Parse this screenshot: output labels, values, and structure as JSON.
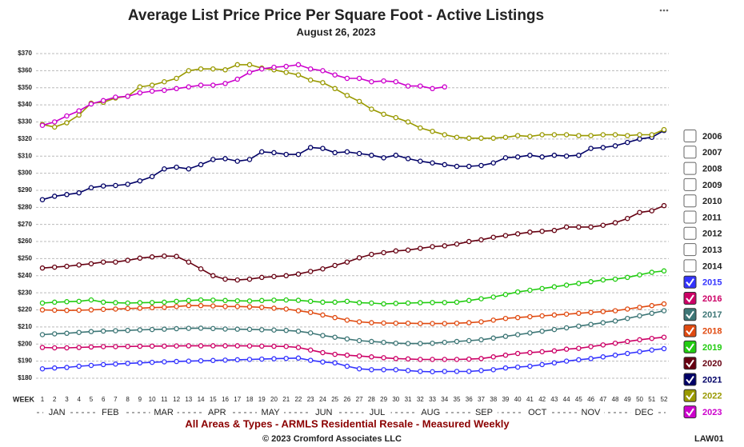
{
  "chart_data": {
    "type": "line",
    "title": "Average List Price Price Per Square Foot - Active Listings",
    "subtitle": "August 26, 2023",
    "x_label": "WEEK",
    "months": [
      "JAN",
      "FEB",
      "MAR",
      "APR",
      "MAY",
      "JUN",
      "JUL",
      "AUG",
      "SEP",
      "OCT",
      "NOV",
      "DEC"
    ],
    "footer": "All Areas & Types - ARMLS Residential Resale - Measured Weekly",
    "copyright": "© 2023 Cromford Associates LLC",
    "code": "LAW01",
    "categories": [
      1,
      2,
      3,
      4,
      5,
      6,
      7,
      8,
      9,
      10,
      11,
      12,
      13,
      14,
      15,
      16,
      17,
      18,
      19,
      20,
      21,
      22,
      23,
      24,
      25,
      26,
      27,
      28,
      29,
      30,
      31,
      32,
      33,
      34,
      35,
      36,
      37,
      38,
      39,
      40,
      41,
      42,
      43,
      44,
      45,
      46,
      47,
      48,
      49,
      50,
      51,
      52
    ],
    "ylim": [
      180,
      370
    ],
    "yticks": [
      {
        "value": 180,
        "label": "$180"
      },
      {
        "value": 190,
        "label": "$190"
      },
      {
        "value": 200,
        "label": "$200"
      },
      {
        "value": 210,
        "label": "$210"
      },
      {
        "value": 220,
        "label": "$220"
      },
      {
        "value": 230,
        "label": "$230"
      },
      {
        "value": 240,
        "label": "$240"
      },
      {
        "value": 250,
        "label": "$250"
      },
      {
        "value": 260,
        "label": "$260"
      },
      {
        "value": 270,
        "label": "$270"
      },
      {
        "value": 280,
        "label": "$280"
      },
      {
        "value": 290,
        "label": "$290"
      },
      {
        "value": 300,
        "label": "$300"
      },
      {
        "value": 310,
        "label": "$310"
      },
      {
        "value": 320,
        "label": "$320"
      },
      {
        "value": 330,
        "label": "$330"
      },
      {
        "value": 340,
        "label": "$340"
      },
      {
        "value": 350,
        "label": "$350"
      },
      {
        "value": 360,
        "label": "$360"
      },
      {
        "value": 370,
        "label": "$370"
      }
    ],
    "grid": true,
    "legend_position": "right",
    "hidden_series": [
      "2006",
      "2007",
      "2008",
      "2009",
      "2010",
      "2011",
      "2012",
      "2013",
      "2014"
    ],
    "series": [
      {
        "name": "2015",
        "color": "#3333ff",
        "values": [
          185.5,
          186,
          186.3,
          187,
          187.5,
          188,
          188.3,
          188.7,
          189,
          189.3,
          189.6,
          189.8,
          190,
          190.2,
          190.4,
          190.6,
          190.8,
          191,
          191.2,
          191.4,
          191.6,
          191.8,
          190.5,
          189.5,
          189,
          187,
          185.5,
          185,
          185,
          185,
          184.5,
          184,
          183.8,
          184,
          184,
          184,
          184.5,
          185,
          186,
          186.5,
          187,
          188,
          189,
          190,
          190.8,
          191.5,
          192.5,
          193.5,
          194.5,
          195.5,
          196.5,
          197.3
        ]
      },
      {
        "name": "2016",
        "color": "#cc0066",
        "values": [
          198,
          197.8,
          197.8,
          198,
          198.3,
          198.5,
          198.5,
          198.6,
          198.7,
          198.8,
          198.8,
          198.9,
          199,
          199,
          199,
          199,
          199,
          198.9,
          198.8,
          198.7,
          198.6,
          198,
          196.5,
          195,
          194,
          193.5,
          193,
          192.5,
          192,
          191.5,
          191.3,
          191,
          191,
          191,
          191,
          191.2,
          191.5,
          192.5,
          193.5,
          194.5,
          195,
          195.5,
          196,
          197,
          197.5,
          198.5,
          199.5,
          200.5,
          201.5,
          202.5,
          203.3,
          204
        ]
      },
      {
        "name": "2017",
        "color": "#3d7676",
        "values": [
          205.5,
          206,
          206.3,
          206.8,
          207.3,
          207.6,
          207.8,
          208,
          208.3,
          208.5,
          208.7,
          209,
          209.2,
          209.3,
          209.1,
          208.8,
          208.7,
          208.6,
          208.4,
          208.2,
          208,
          207.5,
          206.5,
          205,
          204,
          203,
          202,
          201.5,
          201,
          200.5,
          200.3,
          200.3,
          200.5,
          201,
          201.5,
          202,
          202.5,
          203.5,
          204.5,
          205.5,
          206.5,
          207.5,
          208.5,
          209.5,
          210.5,
          211.5,
          212.5,
          213.5,
          215,
          216.5,
          218,
          219.5
        ]
      },
      {
        "name": "2018",
        "color": "#e04a10",
        "values": [
          220,
          219.8,
          219.7,
          219.8,
          220,
          220.3,
          220.5,
          220.8,
          221,
          221.3,
          221.5,
          222,
          222.5,
          222.5,
          222.3,
          222,
          222,
          221.8,
          221.5,
          221,
          220.5,
          219.5,
          218.5,
          217,
          215.5,
          214,
          213,
          212.5,
          212.3,
          212.2,
          212.2,
          212,
          212,
          212,
          212.2,
          212.5,
          213,
          214,
          215,
          215.5,
          216,
          216.5,
          217,
          217.5,
          218,
          218.5,
          219,
          219.5,
          220.5,
          221.5,
          222.5,
          223.5
        ]
      },
      {
        "name": "2019",
        "color": "#22cc11",
        "values": [
          224,
          224.5,
          224.8,
          225,
          225.8,
          224.5,
          224.2,
          224,
          224.2,
          224.3,
          224.5,
          225,
          225.5,
          225.8,
          225.7,
          225.5,
          225.3,
          225.2,
          225.5,
          225.7,
          225.8,
          225.6,
          225,
          224.5,
          224.5,
          225,
          224.2,
          224,
          223.5,
          223.8,
          224,
          224.2,
          224.3,
          224.3,
          224.5,
          225.5,
          226.5,
          227.5,
          229,
          230.5,
          231.5,
          232.5,
          233.5,
          234.5,
          235.5,
          236.5,
          237.5,
          238,
          239,
          240.5,
          242,
          242.8
        ]
      },
      {
        "name": "2020",
        "color": "#660011",
        "values": [
          244.5,
          245,
          245.5,
          246.3,
          247,
          248,
          248,
          249,
          250.3,
          251,
          251.5,
          251.3,
          248,
          244,
          240,
          238,
          237.5,
          238,
          239,
          239.5,
          240,
          241,
          242.5,
          244,
          246,
          248,
          250.5,
          252.5,
          253.5,
          254.5,
          255,
          256,
          257,
          257.5,
          258.5,
          260,
          261,
          262.5,
          263.5,
          264.5,
          265.5,
          266,
          266.5,
          268.5,
          268.5,
          268.5,
          269.5,
          271,
          273.5,
          277,
          278,
          281
        ]
      },
      {
        "name": "2021",
        "color": "#000066",
        "values": [
          284.5,
          286.5,
          287.5,
          288.5,
          291.5,
          292.5,
          292.8,
          293.5,
          295.5,
          298,
          302.5,
          303.5,
          302.5,
          305,
          308,
          308.5,
          307,
          308,
          312.5,
          312,
          311,
          311,
          315,
          314.5,
          312,
          312.5,
          311.5,
          310.5,
          309,
          310.5,
          308.5,
          307,
          306,
          305,
          304,
          304,
          304.5,
          306,
          309,
          309.5,
          310.5,
          309.5,
          310.5,
          310,
          310.5,
          314.5,
          315,
          316,
          318,
          320,
          321,
          325
        ]
      },
      {
        "name": "2022",
        "color": "#999900",
        "values": [
          328.5,
          327,
          329.5,
          334,
          341,
          341.5,
          344,
          345,
          350.5,
          351.5,
          353.5,
          355.5,
          360,
          361,
          361,
          360.5,
          363.5,
          363.5,
          361.5,
          360.5,
          359,
          357.5,
          354.5,
          353,
          349.5,
          345.5,
          342,
          337.5,
          334.5,
          332.5,
          330,
          326.5,
          324.5,
          322.5,
          321,
          320.5,
          320.5,
          320.5,
          321,
          322,
          321.5,
          322.5,
          322.5,
          322.5,
          322,
          322,
          322.5,
          322.5,
          322,
          322.5,
          322.5,
          325.5
        ]
      },
      {
        "name": "2023",
        "color": "#cc00cc",
        "values": [
          328,
          330,
          333.5,
          336.5,
          340.5,
          342.5,
          344.5,
          345,
          347,
          348,
          348.5,
          349.5,
          350.5,
          351.5,
          351.5,
          352.5,
          355,
          359,
          361,
          362,
          362.5,
          363.5,
          361,
          360,
          357.5,
          355.5,
          355.5,
          353.5,
          354,
          353.5,
          351,
          351,
          349.5,
          350.5,
          null,
          null,
          null,
          null,
          null,
          null,
          null,
          null,
          null,
          null,
          null,
          null,
          null,
          null,
          null,
          null,
          null,
          null
        ]
      }
    ]
  }
}
